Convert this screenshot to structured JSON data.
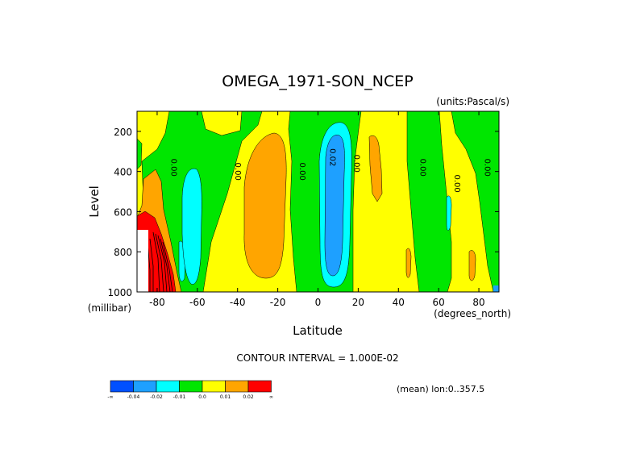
{
  "chart_data": {
    "type": "heatmap",
    "title": "OMEGA_1971-SON_NCEP",
    "units_label": "(units:Pascal/s)",
    "xlabel": "Latitude",
    "ylabel": "Level",
    "x_unit_label": "(degrees_north)",
    "y_unit_label": "(millibar)",
    "xlim": [
      -90,
      90
    ],
    "ylim": [
      1000,
      100
    ],
    "x_ticks": [
      -80,
      -60,
      -40,
      -20,
      0,
      20,
      40,
      60,
      80
    ],
    "x_tick_labels": [
      "-80",
      "-60",
      "-40",
      "-20",
      "0",
      "20",
      "40",
      "60",
      "80"
    ],
    "y_ticks": [
      200,
      400,
      600,
      800,
      1000
    ],
    "y_tick_labels": [
      "200",
      "400",
      "600",
      "800",
      "1000"
    ],
    "contour_interval_text": "CONTOUR INTERVAL = 1.000E-02",
    "contour_labels": [
      {
        "text": "0.00",
        "lat": -73,
        "level": 380
      },
      {
        "text": "0.00",
        "lat": -41,
        "level": 400
      },
      {
        "text": "0.00",
        "lat": -9,
        "level": 400
      },
      {
        "text": "0.02",
        "lat": 6,
        "level": 330
      },
      {
        "text": "0.00",
        "lat": 18,
        "level": 360
      },
      {
        "text": "0.00",
        "lat": 51,
        "level": 380
      },
      {
        "text": "0.00",
        "lat": 68,
        "level": 460
      },
      {
        "text": "0.00",
        "lat": 83,
        "level": 380
      }
    ],
    "colorbar": {
      "colors": [
        "#0050ff",
        "#1ea0ff",
        "#00ffff",
        "#00e600",
        "#ffff00",
        "#ffa500",
        "#ff0000"
      ],
      "boundary_labels": [
        "-∞",
        "-0.04",
        "-0.02",
        "-0.01",
        "0.0",
        "0.01",
        "0.02",
        "∞"
      ]
    },
    "mean_note": "(mean) lon:0..357.5",
    "colors": {
      "neg_strong": "#0050ff",
      "neg_mid": "#1ea0ff",
      "neg_weak": "#00ffff",
      "near_zero_neg": "#00e600",
      "near_zero_pos": "#ffff00",
      "pos_mid": "#ffa500",
      "pos_strong": "#ff0000"
    }
  }
}
